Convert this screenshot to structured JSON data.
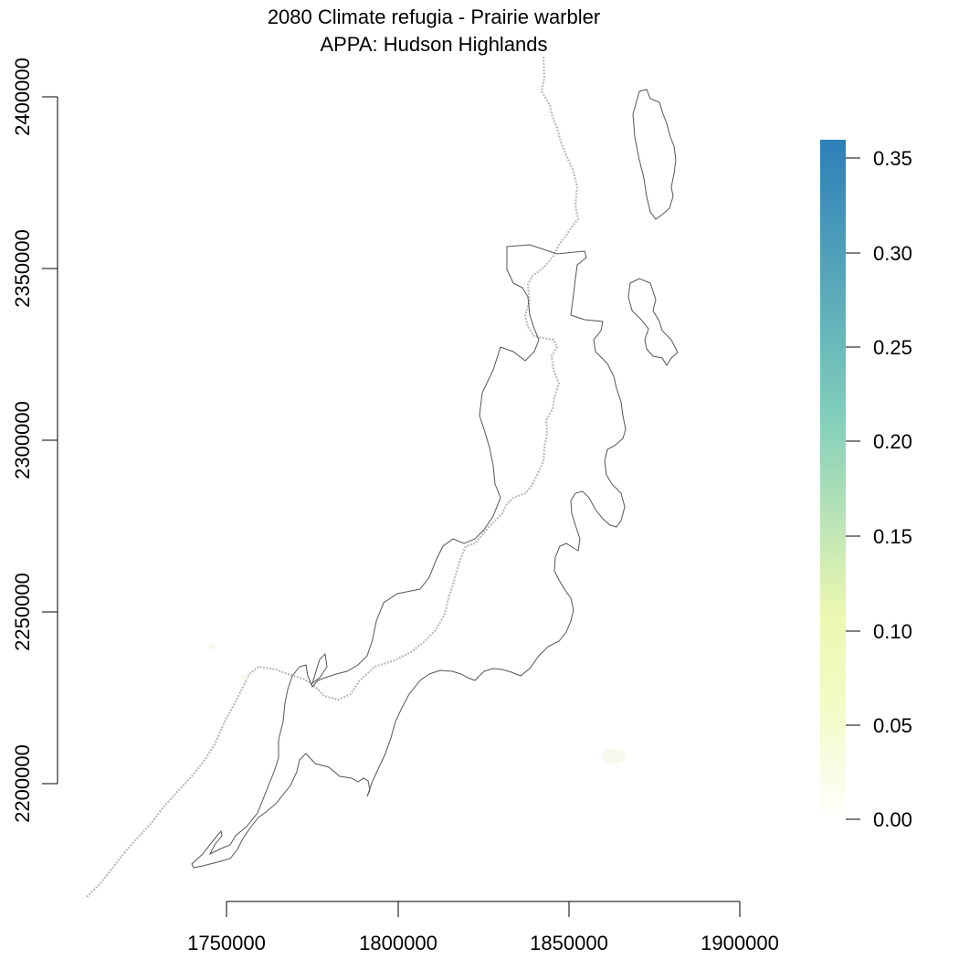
{
  "title": {
    "line1": "2080 Climate refugia - Prairie warbler",
    "line2": "APPA: Hudson Highlands"
  },
  "axes": {
    "x_ticks": [
      "1750000",
      "1800000",
      "1850000",
      "1900000"
    ],
    "y_ticks": [
      "2400000",
      "2350000",
      "2300000",
      "2250000",
      "2200000"
    ]
  },
  "legend": {
    "ticks": [
      "0.35",
      "0.30",
      "0.25",
      "0.20",
      "0.15",
      "0.10",
      "0.05",
      "0.00"
    ],
    "colors": {
      "low": "#ffffff",
      "mid_low": "#f4fac6",
      "mid": "#edf8b1",
      "mid_high": "#7fcdbb",
      "high": "#2c7fb8"
    }
  },
  "map": {
    "boundary_color": "#555555",
    "trail_color": "#bbbbbb"
  }
}
